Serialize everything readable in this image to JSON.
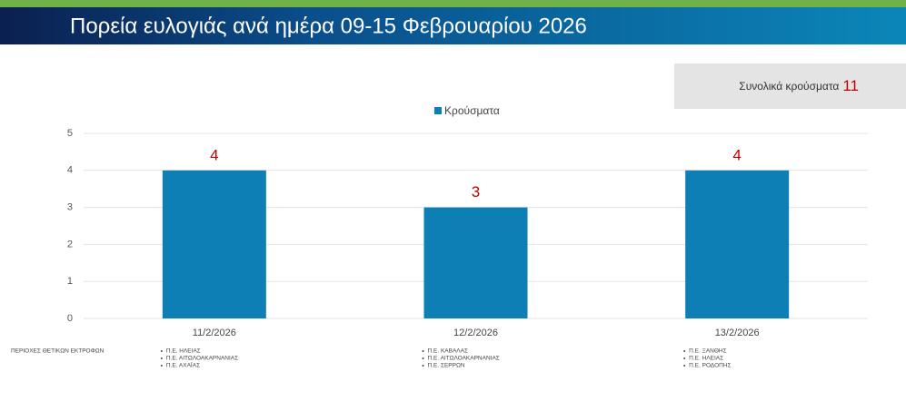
{
  "chart_data": {
    "type": "bar",
    "title": "Πορεία ευλογιάς ανά ημέρα 09-15 Φεβρουαρίου 2026",
    "total_label": "Συνολικά κρούσματα",
    "total": 11,
    "categories": [
      "11/2/2026",
      "12/2/2026",
      "13/2/2026"
    ],
    "series": [
      {
        "name": "Κρούσματα",
        "color": "#0e7fb4",
        "values": [
          4,
          3,
          4
        ]
      }
    ],
    "ylim": [
      0,
      5
    ],
    "yticks": [
      0,
      1,
      2,
      3,
      4,
      5
    ],
    "grid": true,
    "regions_label": "ΠΕΡΙΟΧΕΣ ΘΕΤΙΚΩΝ ΕΚΤΡΟΦΩΝ",
    "regions": [
      [
        "Π.Ε. ΗΛΕΙΑΣ",
        "Π.Ε. ΑΙΤΩΛΟΑΚΑΡΝΑΝΙΑΣ",
        "Π.Ε. ΑΧΑΪΑΣ"
      ],
      [
        "Π.Ε. ΚΑΒΑΛΑΣ",
        "Π.Ε. ΑΙΤΩΛΟΑΚΑΡΝΑΝΙΑΣ",
        "Π.Ε. ΣΕΡΡΩΝ"
      ],
      [
        "Π.Ε. ΞΑΝΘΗΣ",
        "Π.Ε. ΗΛΕΙΑΣ",
        "Π.Ε. ΡΟΔΟΠΗΣ"
      ]
    ]
  }
}
